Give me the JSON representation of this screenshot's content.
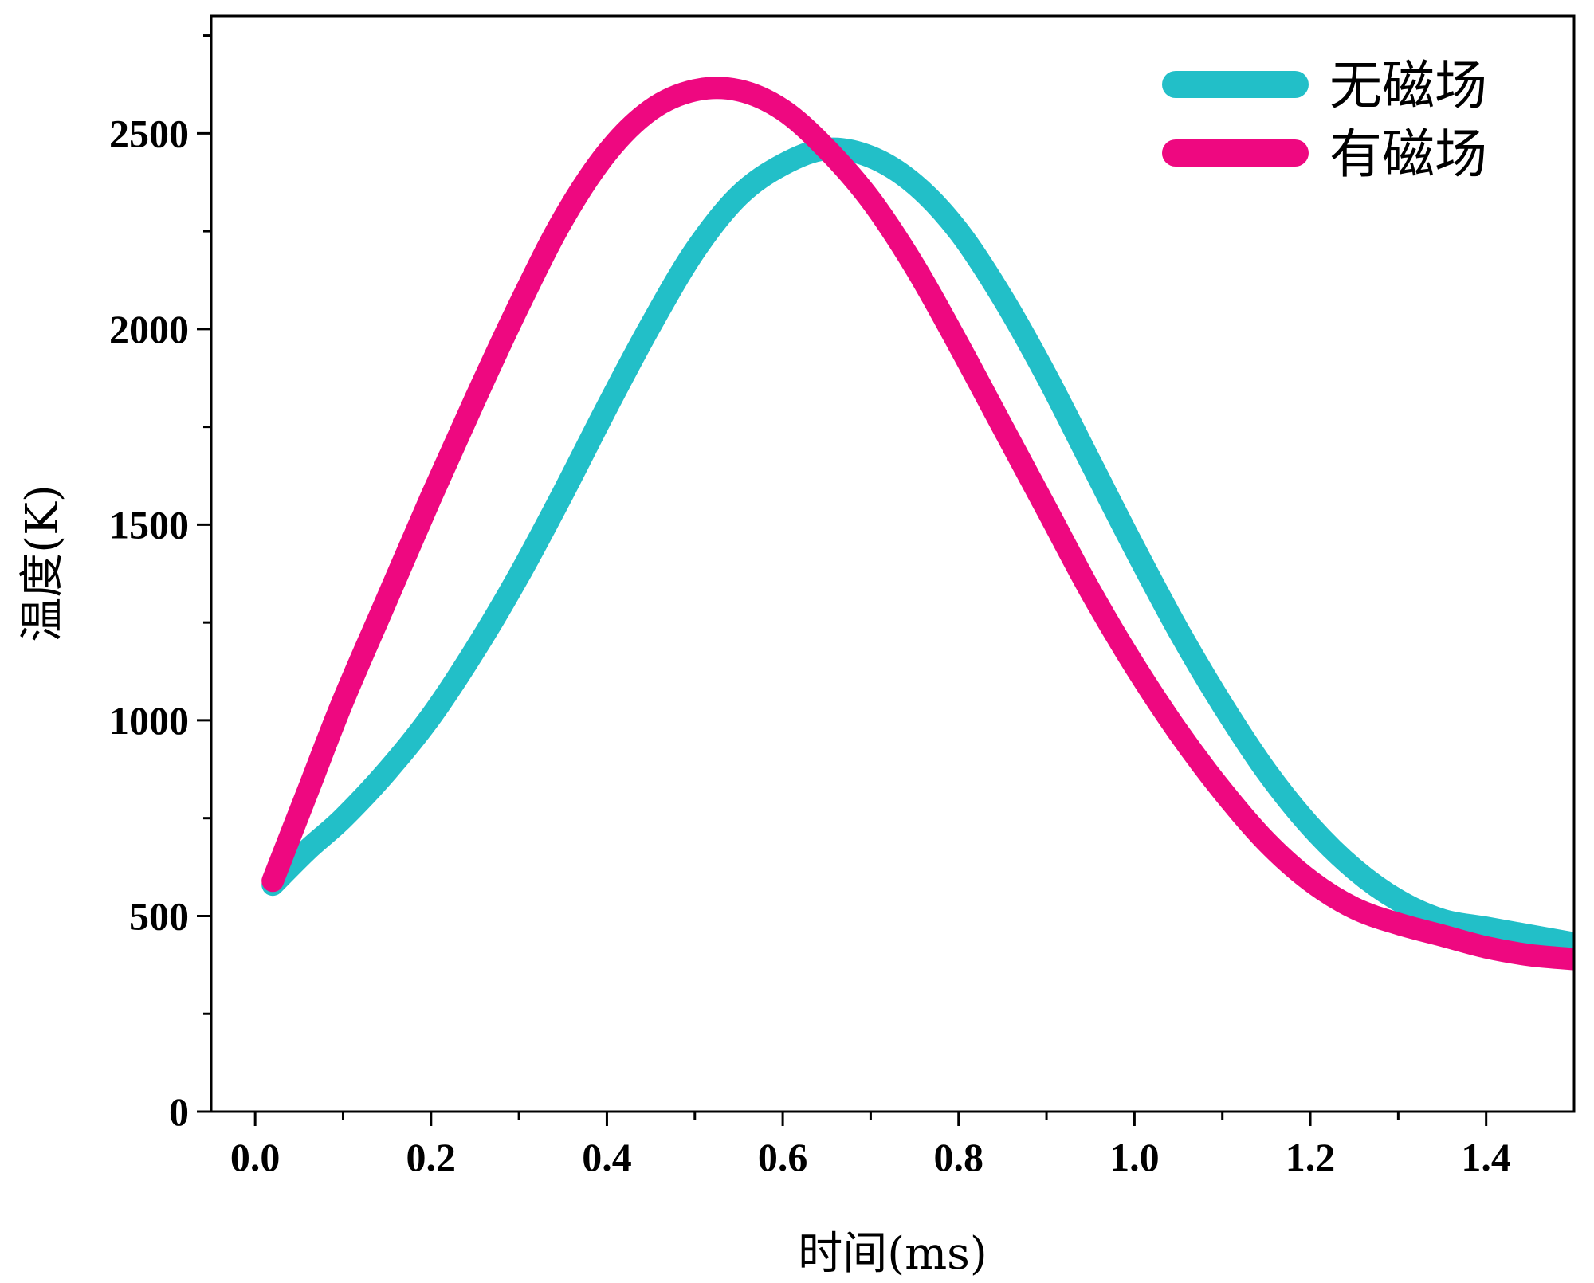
{
  "chart_data": {
    "type": "line",
    "title": "",
    "xlabel": "时间(ms)",
    "ylabel": "温度(K)",
    "xlim": [
      -0.05,
      1.5
    ],
    "ylim": [
      0,
      2800
    ],
    "x_ticks": [
      0.0,
      0.2,
      0.4,
      0.6,
      0.8,
      1.0,
      1.2,
      1.4
    ],
    "x_tick_labels": [
      "0.0",
      "0.2",
      "0.4",
      "0.6",
      "0.8",
      "1.0",
      "1.2",
      "1.4"
    ],
    "x_minor_ticks": [
      0.1,
      0.3,
      0.5,
      0.7,
      0.9,
      1.1,
      1.3
    ],
    "y_ticks": [
      0,
      500,
      1000,
      1500,
      2000,
      2500
    ],
    "y_tick_labels": [
      "0",
      "500",
      "1000",
      "1500",
      "2000",
      "2500"
    ],
    "y_minor_ticks": [
      250,
      750,
      1250,
      1750,
      2250,
      2750
    ],
    "grid": false,
    "legend_position": "top-right",
    "series": [
      {
        "name": "无磁场",
        "color": "#22bfc8",
        "x": [
          0.02,
          0.06,
          0.1,
          0.15,
          0.2,
          0.25,
          0.3,
          0.35,
          0.4,
          0.45,
          0.5,
          0.55,
          0.6,
          0.65,
          0.7,
          0.75,
          0.8,
          0.85,
          0.9,
          0.95,
          1.0,
          1.05,
          1.1,
          1.15,
          1.2,
          1.25,
          1.3,
          1.35,
          1.4,
          1.45,
          1.5
        ],
        "y": [
          580,
          670,
          750,
          870,
          1010,
          1180,
          1370,
          1580,
          1800,
          2010,
          2200,
          2340,
          2420,
          2460,
          2440,
          2370,
          2250,
          2080,
          1880,
          1660,
          1440,
          1230,
          1040,
          870,
          730,
          620,
          540,
          490,
          470,
          450,
          430
        ]
      },
      {
        "name": "有磁场",
        "color": "#ee0880",
        "x": [
          0.02,
          0.06,
          0.1,
          0.15,
          0.2,
          0.25,
          0.3,
          0.35,
          0.4,
          0.45,
          0.5,
          0.55,
          0.6,
          0.65,
          0.7,
          0.75,
          0.8,
          0.85,
          0.9,
          0.95,
          1.0,
          1.05,
          1.1,
          1.15,
          1.2,
          1.25,
          1.3,
          1.35,
          1.4,
          1.45,
          1.5
        ],
        "y": [
          590,
          820,
          1050,
          1310,
          1570,
          1820,
          2060,
          2280,
          2450,
          2560,
          2610,
          2610,
          2560,
          2460,
          2330,
          2160,
          1960,
          1750,
          1540,
          1330,
          1140,
          970,
          820,
          690,
          590,
          520,
          480,
          450,
          420,
          400,
          390
        ]
      }
    ]
  }
}
